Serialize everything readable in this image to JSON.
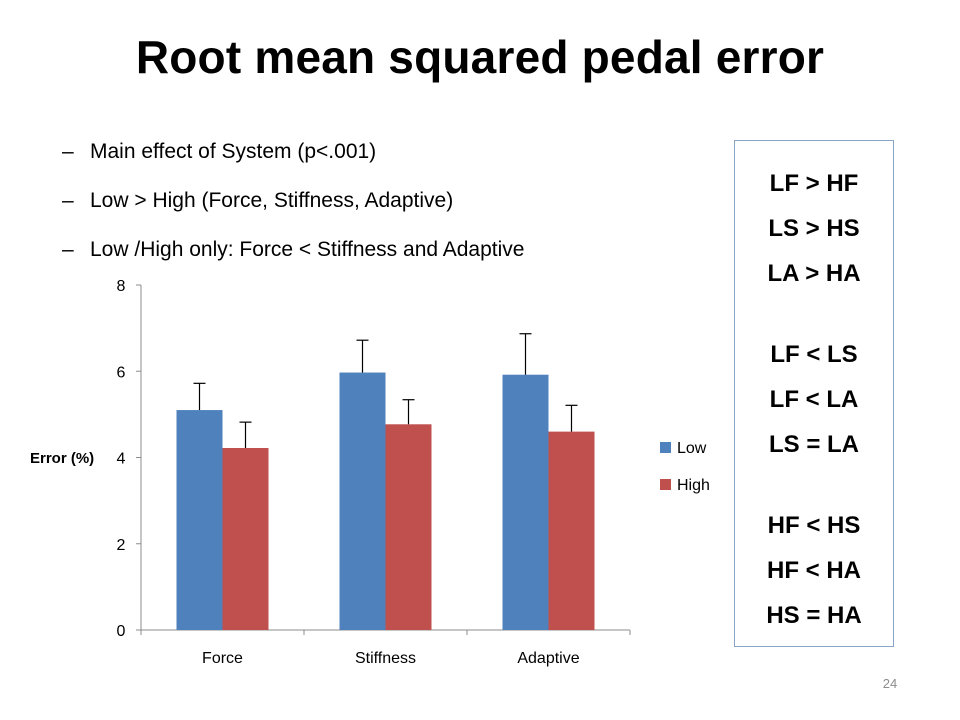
{
  "slide": {
    "title": "Root mean squared pedal error",
    "bullets": [
      {
        "marker": "–",
        "text": "Main effect of System (p<.001)"
      },
      {
        "marker": "–",
        "text": "Low > High (Force, Stiffness, Adaptive)"
      },
      {
        "marker": "–",
        "text": "Low /High only: Force < Stiffness and Adaptive"
      }
    ],
    "comparison_box": [
      [
        "LF > HF",
        "LS > HS",
        "LA > HA"
      ],
      [
        "LF < LS",
        "LF < LA",
        "LS = LA"
      ],
      [
        "HF < HS",
        "HF < HA",
        "HS = HA"
      ]
    ],
    "page_number": "24"
  },
  "chart_data": {
    "type": "bar",
    "title": "",
    "xlabel": "",
    "ylabel": "Error (%)",
    "ylim": [
      0,
      8
    ],
    "yticks": [
      0,
      2,
      4,
      6,
      8
    ],
    "grid": false,
    "legend": "right",
    "categories": [
      "Force",
      "Stiffness",
      "Adaptive"
    ],
    "series": [
      {
        "name": "Low",
        "color": "#4f81bd",
        "values": [
          5.1,
          5.97,
          5.92
        ],
        "errors": [
          0.62,
          0.75,
          0.95
        ]
      },
      {
        "name": "High",
        "color": "#c0504d",
        "values": [
          4.22,
          4.77,
          4.6
        ],
        "errors": [
          0.6,
          0.57,
          0.61
        ]
      }
    ]
  }
}
